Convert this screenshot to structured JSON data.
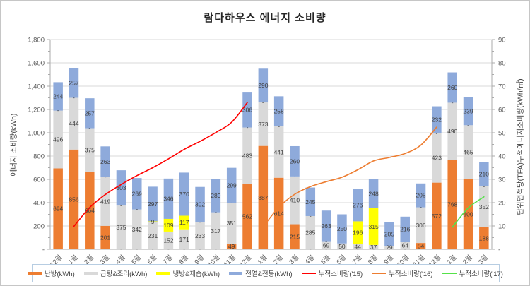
{
  "chart_data": {
    "type": "bar",
    "subtype": "stacked-column-with-cumulative-line-overlay",
    "title": "람다하우스 에너지 소비량",
    "categories": [
      "12월",
      "1월",
      "2월",
      "3월",
      "4월",
      "5월",
      "6월",
      "7월",
      "8월",
      "9월",
      "10월",
      "11월",
      "12월",
      "1월",
      "2월",
      "3월",
      "4월",
      "5월",
      "6월",
      "7월",
      "8월",
      "9월",
      "10월",
      "11월",
      "12월",
      "1월",
      "2월",
      "3월"
    ],
    "bar_series": [
      {
        "name": "난방(kWh)",
        "color": "#ED7D31",
        "values": [
          694,
          856,
          664,
          201,
          0,
          0,
          0,
          0,
          0,
          0,
          0,
          49,
          562,
          887,
          614,
          215,
          0,
          0,
          0,
          0,
          0,
          0,
          0,
          54,
          572,
          768,
          600,
          188
        ]
      },
      {
        "name": "급탕&조리(kWh)",
        "color": "#D9D9D9",
        "values": [
          496,
          444,
          375,
          419,
          375,
          342,
          231,
          152,
          171,
          233,
          317,
          351,
          483,
          373,
          441,
          410,
          285,
          69,
          50,
          44,
          37,
          29,
          64,
          306,
          423,
          490,
          465,
          352
        ]
      },
      {
        "name": "냉방&제습(kWh)",
        "color": "#FFFF00",
        "values": [
          0,
          0,
          0,
          0,
          0,
          0,
          9,
          109,
          117,
          0,
          0,
          0,
          0,
          0,
          0,
          0,
          0,
          0,
          0,
          196,
          315,
          0,
          0,
          0,
          0,
          0,
          0,
          0
        ]
      },
      {
        "name": "전열&전등(kWh)",
        "color": "#8EAADB",
        "values": [
          244,
          257,
          257,
          263,
          303,
          269,
          297,
          346,
          370,
          302,
          289,
          299,
          306,
          290,
          258,
          260,
          245,
          263,
          250,
          276,
          248,
          205,
          216,
          205,
          232,
          260,
          239,
          210
        ]
      }
    ],
    "line_series": [
      {
        "name": "누적소비량('15)",
        "color": "#FF0000",
        "start_index": 1,
        "values": [
          9.8,
          17.9,
          23.5,
          27.8,
          31.6,
          35.0,
          38.8,
          42.9,
          46.3,
          50.1,
          54.5,
          63.0
        ]
      },
      {
        "name": "누적소비량('16)",
        "color": "#ED7D31",
        "start_index": 13,
        "values": [
          9.7,
          18.0,
          23.6,
          26.9,
          29.0,
          30.9,
          34.1,
          37.9,
          39.4,
          41.1,
          44.7,
          52.4
        ]
      },
      {
        "name": "누적소비량('17)",
        "color": "#55E249",
        "start_index": 25,
        "values": [
          9.5,
          17.7,
          22.5
        ]
      }
    ],
    "axes": {
      "left": {
        "title": "에너지 소비량(kWh)",
        "min": 0,
        "max": 1800,
        "major": 200,
        "minor": 100,
        "zero_label": "-"
      },
      "right": {
        "title": "단위면적당(TFA)누적에너지소비량(kWh/㎡)",
        "min": 0,
        "max": 90,
        "major": 10,
        "minor": 5,
        "zero_label": "-"
      }
    },
    "grid": true,
    "legend_position": "bottom",
    "zero_segment_label": "-"
  },
  "style": {
    "gridline_color": "#D9D9D9",
    "axis_color": "#ABABAB",
    "tick_label_color": "#595959",
    "data_label_color": "#404040",
    "legend_border_color": "#B7CDE2"
  }
}
